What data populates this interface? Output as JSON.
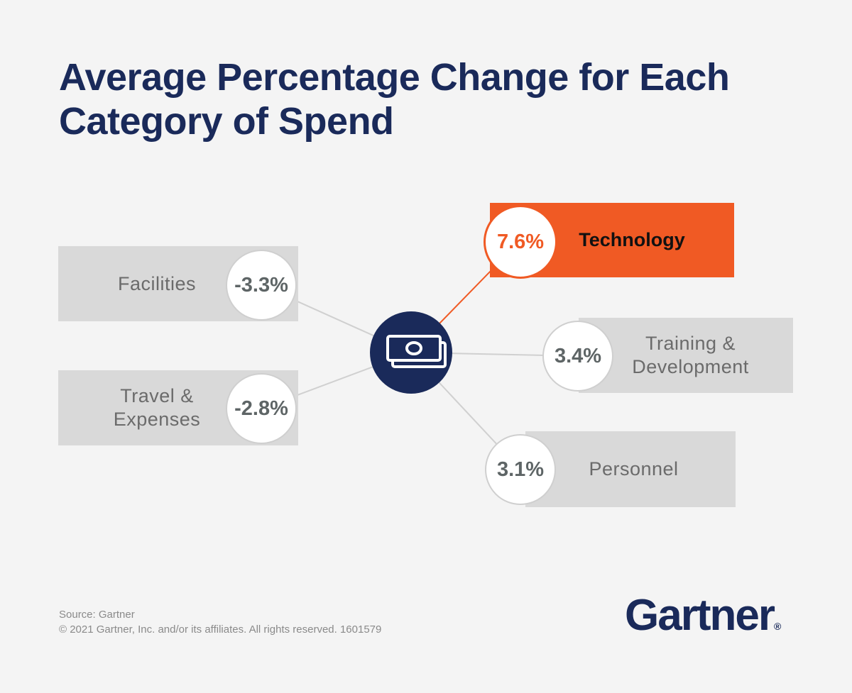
{
  "title": "Average Percentage Change for Each Category of Spend",
  "items": [
    {
      "label": "Facilities",
      "value": "-3.3%"
    },
    {
      "label": "Travel & Expenses",
      "value": "-2.8%"
    },
    {
      "label": "Technology",
      "value": "7.6%"
    },
    {
      "label": "Training & Development",
      "value": "3.4%"
    },
    {
      "label": "Personnel",
      "value": "3.1%"
    }
  ],
  "footer": {
    "source": "Source: Gartner",
    "copyright": "© 2021 Gartner, Inc. and/or its affiliates. All rights reserved. 1601579"
  },
  "logo": {
    "name": "Gartner",
    "mark": "®"
  }
}
